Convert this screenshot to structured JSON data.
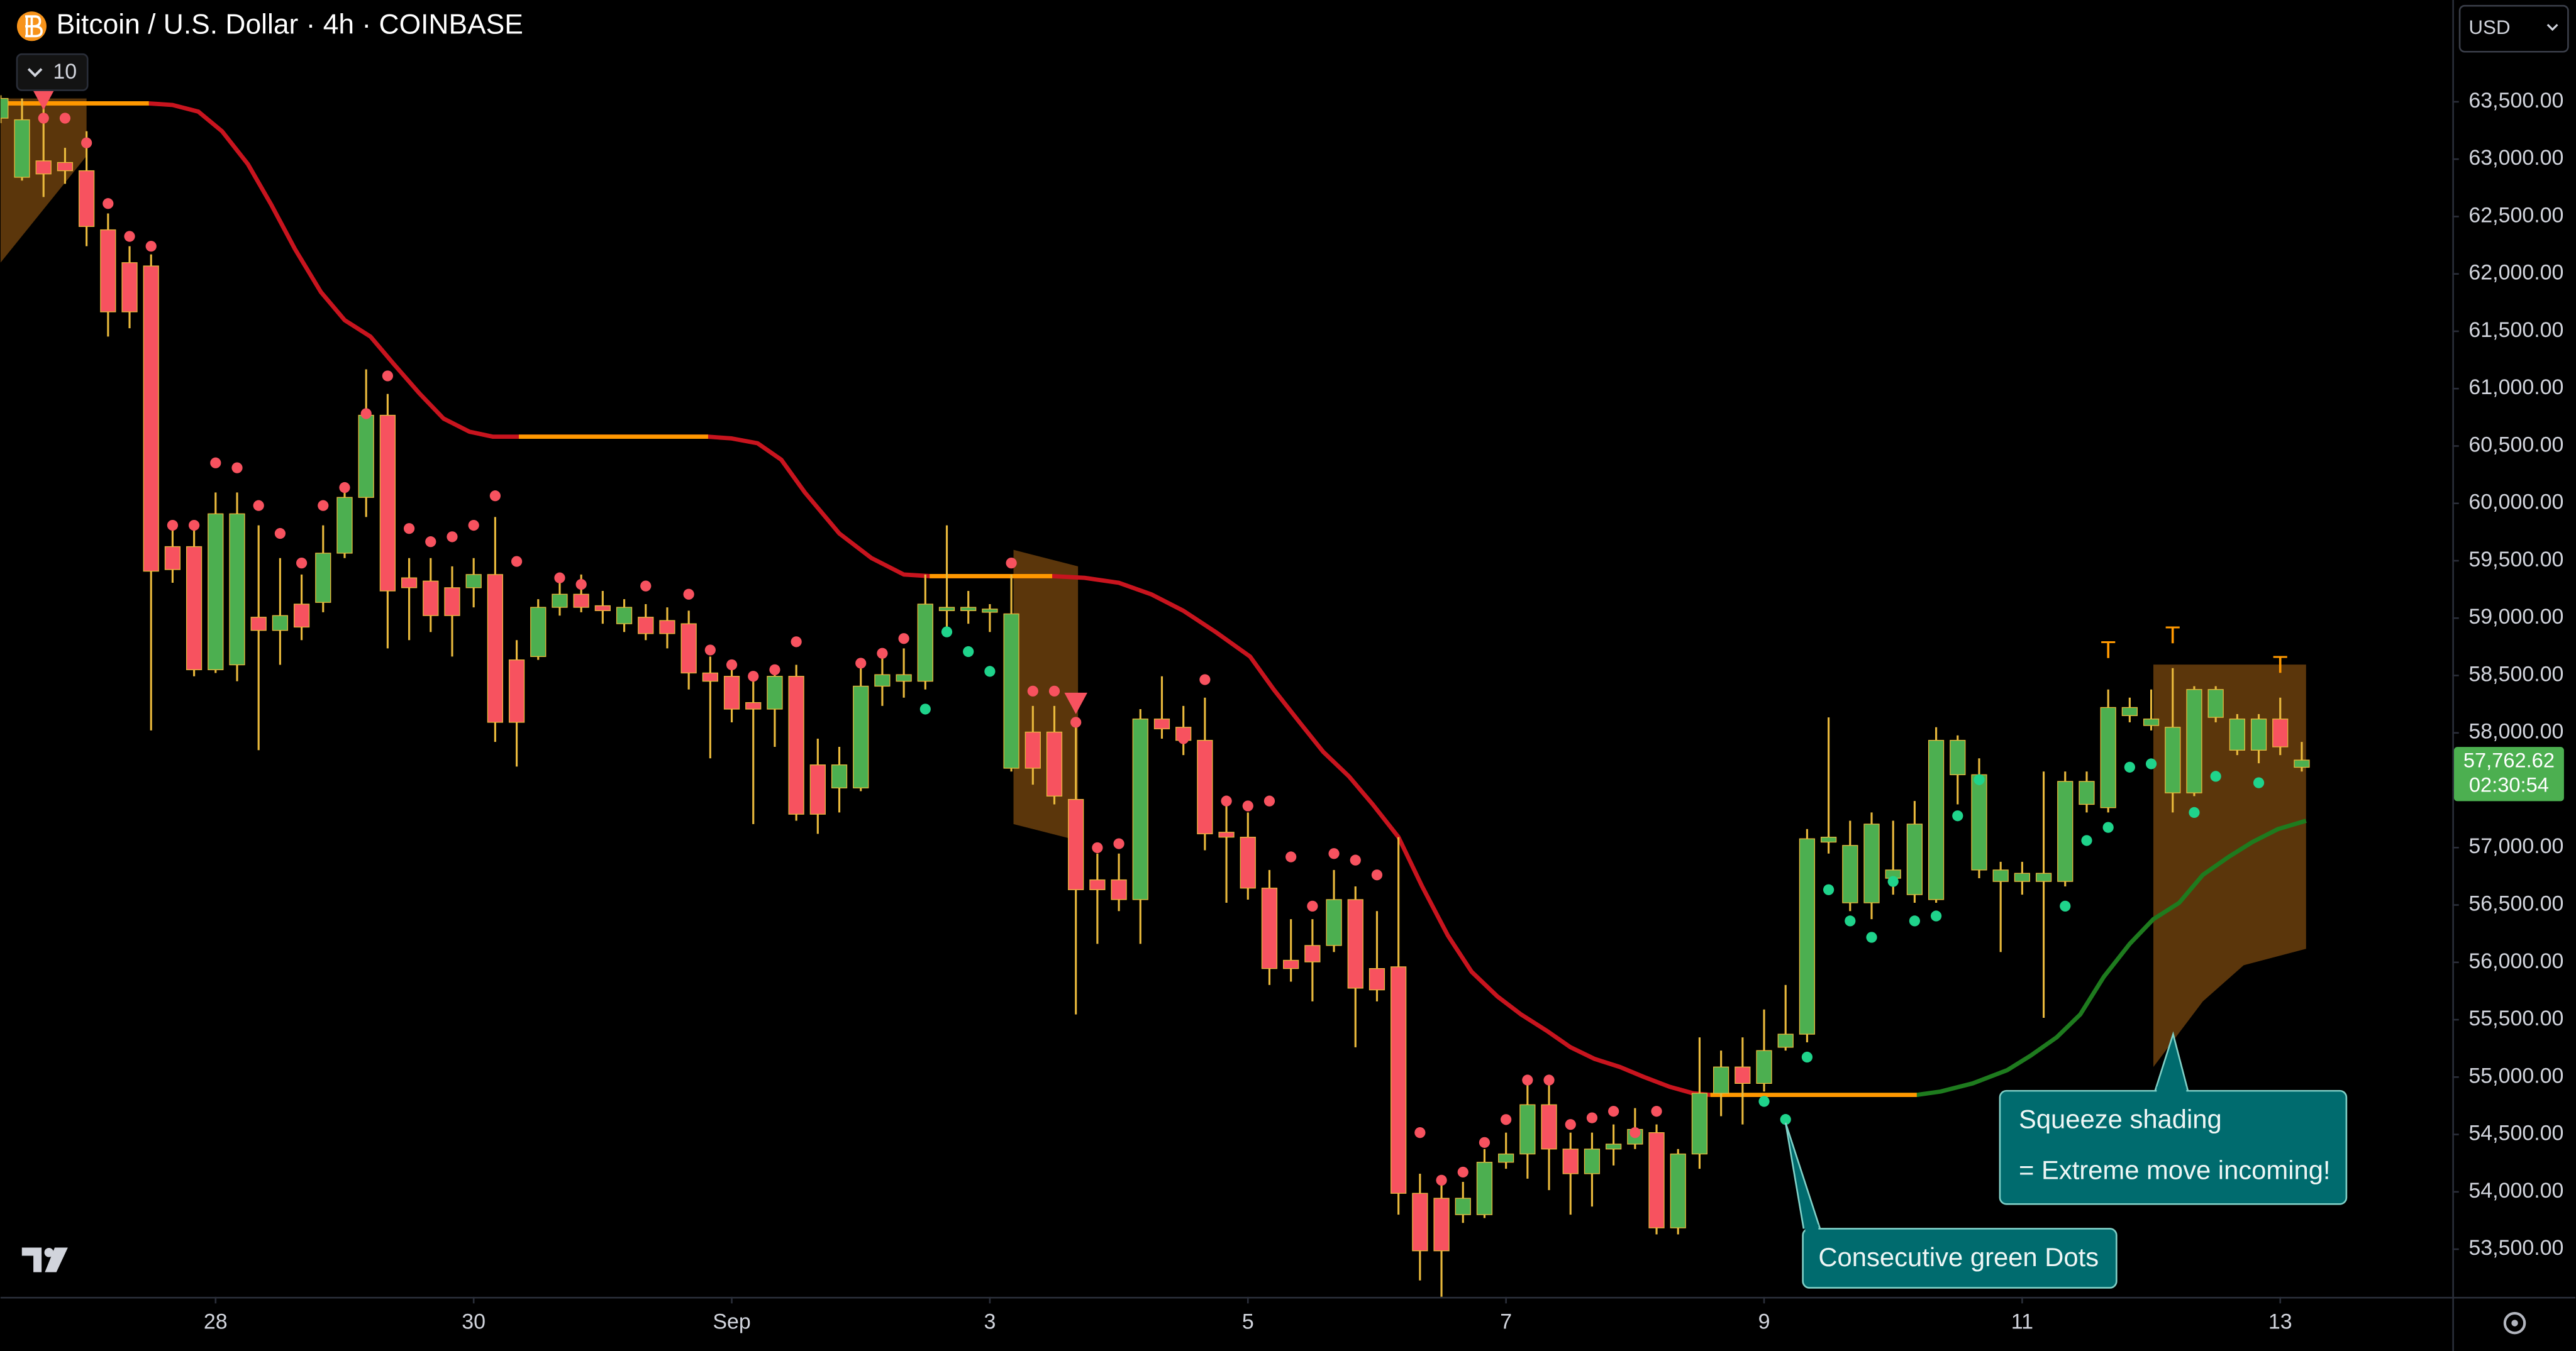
{
  "toolbar": {
    "indicators": "10",
    "currency": "USD"
  },
  "chart_data": {
    "type": "candlestick",
    "title": "Bitcoin / U.S. Dollar · 4h · COINBASE",
    "x": [
      -10,
      -9,
      -8,
      -7,
      -6,
      -5,
      -4,
      -3,
      -2,
      -1,
      0,
      1,
      2,
      3,
      4,
      5,
      6,
      7,
      8,
      9,
      10,
      11,
      12,
      13,
      14,
      15,
      16,
      17,
      18,
      19,
      20,
      21,
      22,
      23,
      24,
      25,
      26,
      27,
      28,
      29,
      30,
      31,
      32,
      33,
      34,
      35,
      36,
      37,
      38,
      39,
      40,
      41,
      42,
      43,
      44,
      45,
      46,
      47,
      48,
      49,
      50,
      51,
      52,
      53,
      54,
      55,
      56,
      57,
      58,
      59,
      60,
      61,
      62,
      63,
      64,
      65,
      66,
      67,
      68,
      69,
      70,
      71,
      72,
      73,
      74,
      75,
      76,
      77,
      78,
      79,
      80,
      81,
      82,
      83,
      84,
      85,
      86,
      87,
      88,
      89,
      90,
      91,
      92,
      93,
      94,
      95,
      96,
      97
    ],
    "open": [
      63357,
      62842,
      62985,
      62971,
      62899,
      62384,
      62098,
      62069,
      59623,
      59623,
      58550,
      58593,
      59008,
      58893,
      59122,
      59137,
      59566,
      60052,
      60768,
      59351,
      59323,
      59265,
      59265,
      59380,
      58636,
      58665,
      59094,
      59208,
      59108,
      58951,
      59008,
      58979,
      58951,
      58522,
      58493,
      58264,
      58207,
      58493,
      57721,
      57520,
      57520,
      58407,
      58450,
      58450,
      59065,
      59065,
      59051,
      57692,
      58007,
      58007,
      57420,
      56719,
      56719,
      56547,
      58121,
      58049,
      57935,
      57134,
      57091,
      56647,
      56018,
      56147,
      56147,
      56547,
      55946,
      55961,
      53987,
      53944,
      53801,
      53801,
      54258,
      54330,
      54759,
      54373,
      54158,
      54373,
      54416,
      54516,
      53686,
      54330,
      54859,
      55088,
      54945,
      55260,
      55374,
      57048,
      56519,
      56519,
      56733,
      56590,
      56547,
      57635,
      56805,
      56705,
      56705,
      56705,
      56705,
      57377,
      57348,
      58150,
      58064,
      57477,
      57477,
      58135,
      57849,
      57849,
      58121,
      57700
    ],
    "high": [
      63557,
      63529,
      63529,
      63099,
      63243,
      62527,
      62241,
      62170,
      59809,
      59809,
      60095,
      60095,
      59809,
      59523,
      59380,
      59809,
      60095,
      61168,
      60954,
      59523,
      59523,
      59451,
      59523,
      59881,
      58808,
      59165,
      59380,
      59380,
      59237,
      59165,
      59122,
      59094,
      59065,
      58665,
      58593,
      58450,
      58593,
      58593,
      57949,
      57878,
      58622,
      58665,
      58736,
      59380,
      59809,
      59237,
      59122,
      59380,
      58235,
      58235,
      58092,
      56948,
      56948,
      58207,
      58493,
      58235,
      58307,
      57377,
      57306,
      56805,
      56376,
      56376,
      56805,
      56662,
      56447,
      57091,
      54158,
      54087,
      54087,
      54373,
      54516,
      54945,
      54945,
      54516,
      54516,
      54587,
      54730,
      54587,
      54373,
      55346,
      55231,
      55346,
      55589,
      55803,
      57162,
      58135,
      57234,
      57306,
      57234,
      57406,
      58049,
      57978,
      57778,
      56876,
      56876,
      57663,
      57663,
      57663,
      58378,
      58307,
      58378,
      58564,
      58407,
      58407,
      58164,
      58164,
      58307,
      57921
    ],
    "low": [
      63314,
      62813,
      62670,
      62785,
      62241,
      61454,
      61526,
      58021,
      59308,
      58493,
      58522,
      58450,
      57849,
      58593,
      58808,
      59051,
      59523,
      59881,
      58736,
      58808,
      58879,
      58665,
      59094,
      57921,
      57706,
      58636,
      59022,
      59051,
      58951,
      58879,
      58808,
      58736,
      58378,
      57778,
      58092,
      57205,
      57878,
      57234,
      57120,
      57306,
      57492,
      58235,
      58307,
      58378,
      58922,
      58951,
      58879,
      57663,
      57549,
      57377,
      55546,
      56161,
      56447,
      56161,
      57949,
      57806,
      56977,
      56519,
      56547,
      55803,
      55832,
      55660,
      56090,
      55260,
      55660,
      53801,
      53228,
      53085,
      53729,
      53772,
      54201,
      54115,
      54015,
      53801,
      53872,
      54230,
      54373,
      53629,
      53629,
      54201,
      54659,
      54587,
      54874,
      55231,
      55303,
      56948,
      56447,
      56376,
      56590,
      56519,
      56519,
      57377,
      56733,
      56090,
      56590,
      55517,
      56662,
      57306,
      57306,
      58092,
      58021,
      57306,
      57449,
      58092,
      57806,
      57735,
      57806,
      57663
    ],
    "close": [
      63529,
      63343,
      62871,
      62899,
      62413,
      61669,
      61669,
      59409,
      59423,
      58550,
      59909,
      59909,
      58893,
      59022,
      58922,
      59566,
      60052,
      60768,
      59237,
      59265,
      59022,
      59022,
      59380,
      58092,
      58092,
      59094,
      59208,
      59094,
      59065,
      59094,
      58865,
      58865,
      58522,
      58450,
      58207,
      58207,
      58493,
      57291,
      57291,
      57721,
      58407,
      58507,
      58507,
      59122,
      59094,
      59094,
      59079,
      59037,
      57692,
      57449,
      56633,
      56633,
      56547,
      58121,
      58035,
      57935,
      57120,
      57091,
      56647,
      55946,
      55946,
      56004,
      56547,
      55775,
      55760,
      53987,
      53486,
      53486,
      53944,
      54258,
      54330,
      54759,
      54373,
      54158,
      54373,
      54416,
      54544,
      53686,
      54330,
      54859,
      55088,
      54945,
      55231,
      55374,
      57077,
      57091,
      57019,
      57205,
      56805,
      57205,
      57935,
      57935,
      57635,
      56805,
      56776,
      56776,
      57577,
      57577,
      58221,
      58221,
      58121,
      58049,
      58378,
      58378,
      58121,
      58121,
      57878,
      57762.62
    ],
    "up_color": "#4caf50",
    "down_color": "#f7525f",
    "wick_color": "#e9b93c",
    "xlim": [
      -10,
      104
    ],
    "ylim": [
      53085,
      64387
    ],
    "xticks": [
      {
        "value": 0,
        "label": "28"
      },
      {
        "value": 12,
        "label": "30"
      },
      {
        "value": 24,
        "label": "Sep"
      },
      {
        "value": 36,
        "label": "3"
      },
      {
        "value": 48,
        "label": "5"
      },
      {
        "value": 60,
        "label": "7"
      },
      {
        "value": 72,
        "label": "9"
      },
      {
        "value": 84,
        "label": "11"
      },
      {
        "value": 96,
        "label": "13"
      }
    ],
    "yticks": [
      {
        "value": 53500,
        "label": "53,500.00"
      },
      {
        "value": 54000,
        "label": "54,000.00"
      },
      {
        "value": 54500,
        "label": "54,500.00"
      },
      {
        "value": 55000,
        "label": "55,000.00"
      },
      {
        "value": 55500,
        "label": "55,500.00"
      },
      {
        "value": 56000,
        "label": "56,000.00"
      },
      {
        "value": 56500,
        "label": "56,500.00"
      },
      {
        "value": 57000,
        "label": "57,000.00"
      },
      {
        "value": 57500,
        "label": "57,500.00"
      },
      {
        "value": 58000,
        "label": "58,000.00"
      },
      {
        "value": 58500,
        "label": "58,500.00"
      },
      {
        "value": 59000,
        "label": "59,000.00"
      },
      {
        "value": 59500,
        "label": "59,500.00"
      },
      {
        "value": 60000,
        "label": "60,000.00"
      },
      {
        "value": 60500,
        "label": "60,500.00"
      },
      {
        "value": 61000,
        "label": "61,000.00"
      },
      {
        "value": 61500,
        "label": "61,500.00"
      },
      {
        "value": 62000,
        "label": "62,000.00"
      },
      {
        "value": 62500,
        "label": "62,500.00"
      },
      {
        "value": 63000,
        "label": "63,000.00"
      },
      {
        "value": 63500,
        "label": "63,500.00"
      }
    ],
    "zones": [
      {
        "color": "#6b400d",
        "x": [
          -10,
          -6
        ],
        "upper": [
          63529,
          63529
        ],
        "lower": [
          62098,
          63028
        ]
      },
      {
        "color": "#6b400d",
        "x": [
          37.1,
          40.1
        ],
        "upper": [
          59595,
          59451
        ],
        "lower": [
          57205,
          57062
        ]
      },
      {
        "color": "#6b400d",
        "x": [
          90.1,
          92.4,
          94.3,
          97.2
        ],
        "upper": [
          58595,
          58595,
          58595,
          58595
        ],
        "lower": [
          55088,
          55660,
          55975,
          56118
        ]
      }
    ],
    "overlays": [
      {
        "color": "#c8141e",
        "x": [
          -3.1,
          -2.0,
          -0.8,
          0.3,
          1.5,
          2.6,
          3.7,
          4.9,
          6.0,
          7.2,
          8.3,
          9.5,
          10.6,
          11.8,
          12.9,
          14.1,
          22.9,
          24.0,
          25.2,
          26.3,
          27.4,
          29.0,
          30.5,
          32.0,
          33.2,
          38.9,
          40.4,
          42.0,
          43.5,
          45.0,
          46.5,
          48.1,
          49.2,
          50.4,
          51.5,
          52.7,
          53.8,
          55.0,
          56.1,
          57.3,
          58.4,
          59.6,
          60.7,
          61.9,
          63.0,
          64.1,
          65.3,
          66.4,
          67.6,
          68.7,
          69.5
        ],
        "values": [
          63486,
          63472,
          63414,
          63243,
          62957,
          62599,
          62213,
          61841,
          61597,
          61454,
          61211,
          60954,
          60739,
          60625,
          60581,
          60581,
          60581,
          60566,
          60524,
          60381,
          60095,
          59738,
          59523,
          59380,
          59366,
          59366,
          59351,
          59308,
          59208,
          59064,
          58879,
          58665,
          58378,
          58092,
          57835,
          57620,
          57377,
          57091,
          56662,
          56233,
          55918,
          55703,
          55546,
          55403,
          55260,
          55160,
          55088,
          55002,
          54916,
          54859,
          54845
        ]
      },
      {
        "color": "#1e7b1e",
        "x": [
          69.5,
          79.1,
          80.2,
          81.7,
          83.3,
          84.4,
          85.6,
          86.7,
          87.8,
          89.0,
          90.1,
          91.3,
          92.4,
          93.6,
          94.7,
          95.9,
          97.2
        ],
        "values": [
          54845,
          54845,
          54874,
          54945,
          55060,
          55188,
          55346,
          55546,
          55875,
          56161,
          56376,
          56519,
          56762,
          56919,
          57048,
          57162,
          57234
        ]
      },
      {
        "color": "#ff9800",
        "x": [
          -10,
          -3.1
        ],
        "values": [
          63486,
          63486
        ]
      },
      {
        "color": "#ff9800",
        "x": [
          14.1,
          22.9
        ],
        "values": [
          60581,
          60581
        ]
      },
      {
        "color": "#ff9800",
        "x": [
          33.2,
          38.9
        ],
        "values": [
          59366,
          59366
        ]
      },
      {
        "color": "#ff9800",
        "x": [
          69.5,
          79.1
        ],
        "values": [
          54845,
          54845
        ]
      }
    ],
    "dots": [
      {
        "color": "#f7525f",
        "x": [
          -8,
          -7,
          -6,
          -5,
          -4,
          -3,
          -2,
          -1,
          0,
          1,
          2,
          3,
          4,
          5,
          6,
          7,
          8,
          9,
          10,
          11,
          12,
          13,
          14,
          16,
          17,
          20,
          22,
          23,
          24,
          25,
          26,
          27,
          30,
          31,
          32,
          37,
          38,
          39,
          40,
          41,
          42,
          45,
          46,
          47,
          48,
          49,
          50,
          51,
          52,
          53,
          54,
          56,
          57,
          58,
          59,
          60,
          61,
          62,
          63,
          64,
          65,
          66,
          67
        ],
        "values": [
          63357,
          63357,
          63142,
          62613,
          62327,
          62241,
          59809,
          59809,
          60353,
          60310,
          59981,
          59738,
          59480,
          59981,
          60138,
          60782,
          61111,
          59781,
          59666,
          59709,
          59809,
          60066,
          59494,
          59351,
          59294,
          59280,
          59208,
          58722,
          58593,
          58493,
          58550,
          58794,
          58607,
          58693,
          58822,
          59480,
          58364,
          58364,
          58092,
          56999,
          57034,
          57949,
          58464,
          57406,
          57363,
          57406,
          56919,
          56490,
          56948,
          56891,
          56762,
          54516,
          54101,
          54172,
          54430,
          54630,
          54974,
          54974,
          54587,
          54645,
          54702,
          54516,
          54702
        ]
      },
      {
        "color": "#1fd38b",
        "x": [
          33,
          34,
          35,
          36,
          72,
          73,
          74,
          75,
          76,
          77,
          78,
          79,
          80,
          81,
          82,
          86,
          87,
          88,
          89,
          90,
          92,
          93,
          95
        ],
        "values": [
          58207,
          58880,
          58708,
          58536,
          54788,
          54631,
          55174,
          56633,
          56361,
          56218,
          56705,
          56361,
          56404,
          57277,
          57592,
          56490,
          57062,
          57176,
          57701,
          57730,
          57306,
          57621,
          57565
        ]
      }
    ],
    "signals": {
      "color": "#f7525f",
      "x": [
        -8,
        40
      ],
      "values": [
        63529,
        58264
      ]
    },
    "top_markers": {
      "label": "T",
      "color": "#ff9800",
      "x": [
        88,
        91,
        96
      ],
      "values": [
        58708,
        58836,
        58579
      ]
    },
    "last_price": {
      "value": 57762.62,
      "label": "57,762.62"
    },
    "countdown": "02:30:54",
    "annotations": [
      [
        "Squeeze shading",
        "= Extreme move incoming!"
      ],
      [
        "Consecutive green Dots"
      ]
    ]
  }
}
